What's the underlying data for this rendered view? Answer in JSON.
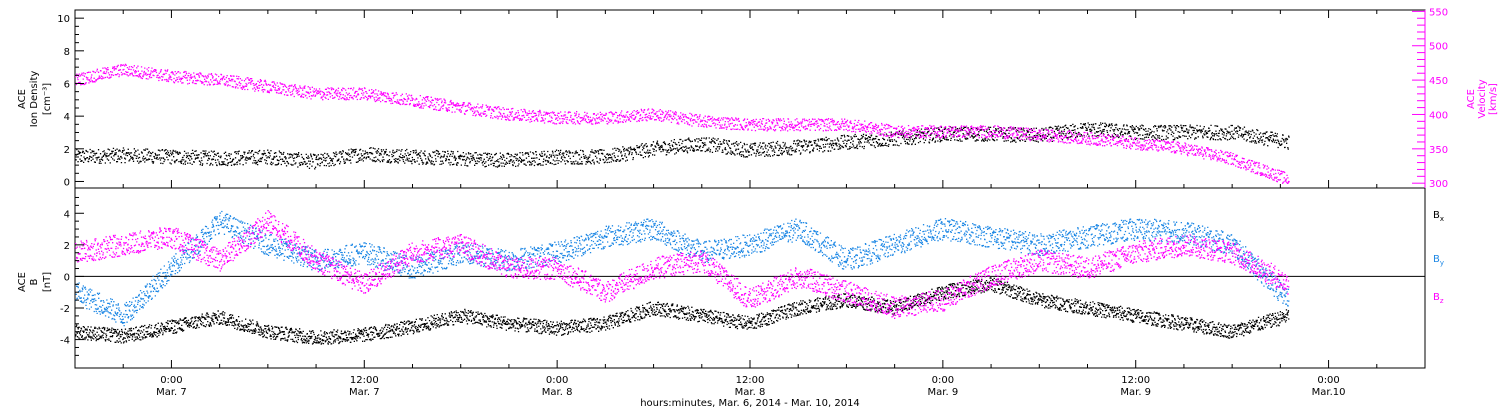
{
  "colors": {
    "black": "#000000",
    "magenta": "#ff00ff",
    "blue": "#1e88e5"
  },
  "xaxis": {
    "start_hour": -6,
    "end_hour": 78,
    "ticks": [
      {
        "h": 0,
        "t1": "0:00",
        "t2": "Mar. 7"
      },
      {
        "h": 12,
        "t1": "12:00",
        "t2": "Mar. 7"
      },
      {
        "h": 24,
        "t1": "0:00",
        "t2": "Mar. 8"
      },
      {
        "h": 36,
        "t1": "12:00",
        "t2": "Mar. 8"
      },
      {
        "h": 48,
        "t1": "0:00",
        "t2": "Mar. 9"
      },
      {
        "h": 60,
        "t1": "12:00",
        "t2": "Mar. 9"
      },
      {
        "h": 72,
        "t1": "0:00",
        "t2": "Mar.10"
      }
    ],
    "title": "hours:minutes, Mar.  6, 2014 - Mar. 10, 2014"
  },
  "chart_data": [
    {
      "type": "scatter",
      "ylabel_left": [
        "ACE",
        "Ion Density",
        "[cm⁻³]"
      ],
      "ylabel_right": [
        "ACE",
        "Velocity",
        "[km/s]"
      ],
      "ylim_left": [
        -0.4,
        10.5
      ],
      "ylim_right": [
        293,
        552
      ],
      "left_ticks": [
        "0",
        "2",
        "4",
        "6",
        "8",
        "10"
      ],
      "right_ticks": [
        "300",
        "350",
        "400",
        "450",
        "500",
        "550"
      ],
      "series": [
        {
          "axis": "left",
          "color": "#000000",
          "x": [
            -6,
            -3,
            0,
            3,
            6,
            9,
            12,
            15,
            18,
            21,
            24,
            27,
            30,
            33,
            36,
            39,
            42,
            45,
            48,
            51,
            54,
            57,
            60,
            63,
            66,
            69.5
          ],
          "y": [
            1.5,
            1.6,
            1.5,
            1.4,
            1.5,
            1.2,
            1.7,
            1.5,
            1.4,
            1.3,
            1.5,
            1.5,
            2.0,
            2.3,
            1.9,
            2.1,
            2.4,
            2.6,
            2.9,
            2.9,
            2.8,
            3.2,
            3.0,
            3.0,
            3.0,
            2.4
          ]
        },
        {
          "axis": "right",
          "color": "#ff00ff",
          "x": [
            -6,
            -3,
            0,
            3,
            6,
            9,
            12,
            15,
            18,
            21,
            24,
            27,
            30,
            33,
            36,
            39,
            42,
            45,
            48,
            51,
            54,
            57,
            60,
            63,
            66,
            69.5
          ],
          "y": [
            450,
            465,
            455,
            450,
            440,
            430,
            430,
            420,
            410,
            400,
            395,
            395,
            400,
            390,
            385,
            385,
            385,
            375,
            375,
            375,
            370,
            365,
            358,
            350,
            335,
            305
          ]
        }
      ]
    },
    {
      "type": "scatter",
      "ylabel_left": [
        "ACE",
        "B",
        "[nT]"
      ],
      "ylim": [
        -5.8,
        5.6
      ],
      "left_ticks": [
        "-4",
        "-2",
        "0",
        "2",
        "4"
      ],
      "legend": [
        "B",
        "B",
        "B"
      ],
      "legend_subscripts": [
        "x",
        "y",
        "z"
      ],
      "series": [
        {
          "name": "Bx",
          "color": "#000000",
          "x": [
            -6,
            -3,
            0,
            3,
            6,
            9,
            12,
            15,
            18,
            21,
            24,
            27,
            30,
            33,
            36,
            39,
            42,
            45,
            48,
            51,
            54,
            57,
            60,
            63,
            66,
            69.5
          ],
          "y": [
            -3.5,
            -3.8,
            -3.2,
            -2.6,
            -3.5,
            -3.9,
            -3.7,
            -3.2,
            -2.5,
            -3.0,
            -3.3,
            -3.0,
            -2.0,
            -2.5,
            -3.0,
            -2.0,
            -1.5,
            -2.0,
            -1.0,
            -0.5,
            -1.5,
            -2.0,
            -2.5,
            -3.0,
            -3.5,
            -2.5
          ]
        },
        {
          "name": "By",
          "color": "#1e88e5",
          "x": [
            -6,
            -3,
            0,
            3,
            6,
            9,
            12,
            15,
            18,
            21,
            24,
            27,
            30,
            33,
            36,
            39,
            42,
            45,
            48,
            51,
            54,
            57,
            60,
            63,
            66,
            69.5
          ],
          "y": [
            -1.0,
            -2.5,
            0.5,
            3.5,
            2.0,
            1.0,
            1.5,
            0.5,
            1.5,
            1.0,
            1.5,
            2.5,
            3.0,
            1.5,
            2.0,
            3.0,
            1.0,
            2.0,
            3.0,
            2.5,
            2.0,
            2.5,
            3.0,
            2.8,
            2.0,
            -1.5
          ]
        },
        {
          "name": "Bz",
          "color": "#ff00ff",
          "x": [
            -6,
            -3,
            0,
            3,
            6,
            9,
            12,
            15,
            18,
            21,
            24,
            27,
            30,
            33,
            36,
            39,
            42,
            45,
            48,
            51,
            54,
            57,
            60,
            63,
            66,
            69.5
          ],
          "y": [
            1.5,
            2.0,
            2.5,
            1.0,
            3.5,
            1.0,
            -0.5,
            1.5,
            2.0,
            0.5,
            0.5,
            -1.0,
            0.5,
            1.0,
            -1.5,
            0.0,
            -1.0,
            -2.0,
            -1.5,
            0.0,
            1.0,
            0.5,
            1.5,
            2.0,
            1.5,
            -0.5
          ]
        }
      ]
    }
  ]
}
